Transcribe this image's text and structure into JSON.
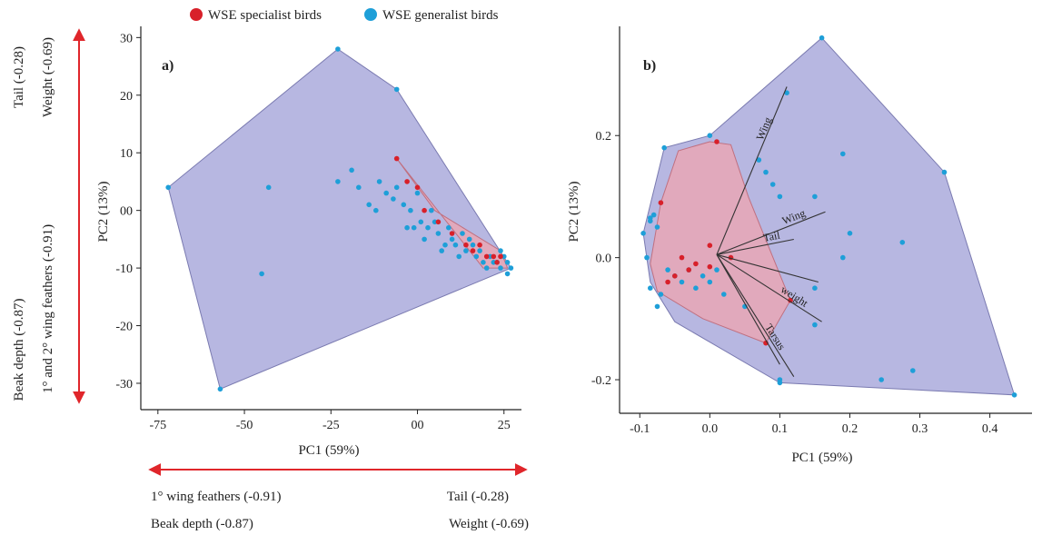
{
  "legend": {
    "specialist_label": "WSE specialist birds",
    "generalist_label": "WSE generalist birds"
  },
  "colors": {
    "specialist": "#d8202a",
    "generalist": "#1e9fd8",
    "hull_generalist": "#aaaadc",
    "hull_specialist": "#e6a7b8",
    "arrows": "#e0262b"
  },
  "annotations": {
    "y_top_a": "Tail (-0.28)",
    "y_top_b": "Weight (-0.69)",
    "y_bottom_a": "Beak depth (-0.87)",
    "y_bottom_b": "1° and 2° wing feathers (-0.91)",
    "x_left_a": "1° wing feathers (-0.91)",
    "x_left_b": "Beak depth (-0.87)",
    "x_right_a": "Tail (-0.28)",
    "x_right_b": "Weight (-0.69)"
  },
  "chart_data": [
    {
      "panel": "a)",
      "type": "scatter",
      "title": "",
      "xlabel": "PC1 (59%)",
      "ylabel": "PC2 (13%)",
      "xlim": [
        -76,
        29
      ],
      "ylim": [
        -33,
        31
      ],
      "xticks": [
        -75,
        -50,
        -25,
        0,
        25
      ],
      "xtick_labels": [
        "-75",
        "-50",
        "-25",
        "00",
        "25"
      ],
      "yticks": [
        30,
        20,
        10,
        0,
        -10,
        -20,
        -30
      ],
      "ytick_labels": [
        "30",
        "20",
        "10",
        "00",
        "-10",
        "-20",
        "-30"
      ],
      "hull_generalist": [
        [
          -23,
          28
        ],
        [
          -6,
          21
        ],
        [
          27,
          -10
        ],
        [
          -57,
          -31
        ],
        [
          -72,
          4
        ]
      ],
      "hull_specialist": [
        [
          -6,
          9
        ],
        [
          5,
          0
        ],
        [
          24,
          -7
        ],
        [
          26,
          -10
        ],
        [
          19,
          -10
        ]
      ],
      "series": [
        {
          "name": "WSE generalist birds",
          "points": [
            [
              -23,
              28
            ],
            [
              -6,
              21
            ],
            [
              -72,
              4
            ],
            [
              -57,
              -31
            ],
            [
              -45,
              -11
            ],
            [
              -43,
              4
            ],
            [
              -23,
              5
            ],
            [
              -19,
              7
            ],
            [
              -17,
              4
            ],
            [
              -14,
              1
            ],
            [
              -12,
              0
            ],
            [
              -11,
              5
            ],
            [
              -9,
              3
            ],
            [
              -7,
              2
            ],
            [
              -6,
              4
            ],
            [
              -4,
              1
            ],
            [
              -3,
              -3
            ],
            [
              -2,
              0
            ],
            [
              -1,
              -3
            ],
            [
              0,
              3
            ],
            [
              1,
              -2
            ],
            [
              2,
              -5
            ],
            [
              3,
              -3
            ],
            [
              4,
              0
            ],
            [
              5,
              -2
            ],
            [
              6,
              -4
            ],
            [
              7,
              -7
            ],
            [
              8,
              -6
            ],
            [
              9,
              -3
            ],
            [
              10,
              -5
            ],
            [
              11,
              -6
            ],
            [
              12,
              -8
            ],
            [
              13,
              -4
            ],
            [
              14,
              -7
            ],
            [
              15,
              -5
            ],
            [
              16,
              -6
            ],
            [
              17,
              -8
            ],
            [
              18,
              -7
            ],
            [
              19,
              -9
            ],
            [
              20,
              -10
            ],
            [
              21,
              -8
            ],
            [
              22,
              -9
            ],
            [
              23,
              -9
            ],
            [
              24,
              -7
            ],
            [
              25,
              -8
            ],
            [
              26,
              -9
            ],
            [
              27,
              -10
            ],
            [
              26,
              -11
            ],
            [
              24,
              -10
            ]
          ]
        },
        {
          "name": "WSE specialist birds",
          "points": [
            [
              -6,
              9
            ],
            [
              -3,
              5
            ],
            [
              0,
              4
            ],
            [
              2,
              0
            ],
            [
              6,
              -2
            ],
            [
              10,
              -4
            ],
            [
              14,
              -6
            ],
            [
              16,
              -7
            ],
            [
              18,
              -6
            ],
            [
              20,
              -8
            ],
            [
              22,
              -8
            ],
            [
              23,
              -9
            ],
            [
              24,
              -8
            ]
          ]
        }
      ]
    },
    {
      "panel": "b)",
      "type": "scatter",
      "title": "",
      "xlabel": "PC1 (59%)",
      "ylabel": "PC2 (13%)",
      "xlim": [
        -0.125,
        0.455
      ],
      "ylim": [
        -0.255,
        0.37
      ],
      "xticks": [
        -0.1,
        0.0,
        0.1,
        0.2,
        0.3,
        0.4
      ],
      "xtick_labels": [
        "-0.1",
        "0.0",
        "0.1",
        "0.2",
        "0.3",
        "0.4"
      ],
      "yticks": [
        0.2,
        0.0,
        -0.2
      ],
      "ytick_labels": [
        "0.2",
        "0.0",
        "-0.2"
      ],
      "hull_generalist": [
        [
          0.16,
          0.36
        ],
        [
          0.335,
          0.14
        ],
        [
          0.435,
          -0.225
        ],
        [
          0.1,
          -0.205
        ],
        [
          -0.05,
          -0.105
        ],
        [
          -0.085,
          -0.04
        ],
        [
          -0.095,
          0.04
        ],
        [
          -0.065,
          0.18
        ],
        [
          0.0,
          0.2
        ]
      ],
      "hull_specialist": [
        [
          -0.07,
          0.09
        ],
        [
          -0.045,
          0.175
        ],
        [
          0.0,
          0.19
        ],
        [
          0.03,
          0.185
        ],
        [
          0.055,
          0.1
        ],
        [
          0.115,
          -0.07
        ],
        [
          0.08,
          -0.14
        ],
        [
          -0.01,
          -0.1
        ],
        [
          -0.075,
          -0.055
        ],
        [
          -0.085,
          -0.01
        ]
      ],
      "vectors": [
        {
          "label": "Wing",
          "end": [
            0.11,
            0.28
          ]
        },
        {
          "label": "Wing",
          "end": [
            0.165,
            0.075
          ]
        },
        {
          "label": "Tail",
          "end": [
            0.12,
            0.03
          ]
        },
        {
          "label": "",
          "end": [
            0.155,
            -0.04
          ]
        },
        {
          "label": "weight",
          "end": [
            0.16,
            -0.105
          ]
        },
        {
          "label": "Tarsus",
          "end": [
            0.12,
            -0.195
          ]
        },
        {
          "label": "",
          "end": [
            0.1,
            -0.175
          ]
        }
      ],
      "series": [
        {
          "name": "WSE generalist birds",
          "points": [
            [
              0.16,
              0.36
            ],
            [
              0.335,
              0.14
            ],
            [
              0.435,
              -0.225
            ],
            [
              0.1,
              -0.205
            ],
            [
              -0.065,
              0.18
            ],
            [
              0.0,
              0.2
            ],
            [
              -0.095,
              0.04
            ],
            [
              -0.085,
              0.06
            ],
            [
              -0.08,
              0.07
            ],
            [
              -0.085,
              0.065
            ],
            [
              -0.075,
              0.05
            ],
            [
              -0.09,
              0.0
            ],
            [
              -0.085,
              -0.05
            ],
            [
              -0.075,
              -0.08
            ],
            [
              -0.07,
              -0.06
            ],
            [
              -0.06,
              -0.02
            ],
            [
              -0.05,
              -0.03
            ],
            [
              -0.04,
              -0.04
            ],
            [
              -0.03,
              -0.02
            ],
            [
              -0.02,
              -0.05
            ],
            [
              -0.01,
              -0.03
            ],
            [
              0.0,
              -0.04
            ],
            [
              0.01,
              -0.02
            ],
            [
              0.02,
              -0.06
            ],
            [
              0.05,
              -0.08
            ],
            [
              0.07,
              0.16
            ],
            [
              0.08,
              0.14
            ],
            [
              0.09,
              0.12
            ],
            [
              0.1,
              0.1
            ],
            [
              0.15,
              0.1
            ],
            [
              0.19,
              0.17
            ],
            [
              0.2,
              0.04
            ],
            [
              0.245,
              -0.2
            ],
            [
              0.275,
              0.025
            ],
            [
              0.29,
              -0.185
            ],
            [
              0.19,
              0.0
            ],
            [
              0.15,
              -0.05
            ],
            [
              0.15,
              -0.11
            ],
            [
              0.1,
              -0.2
            ],
            [
              0.11,
              0.27
            ]
          ]
        },
        {
          "name": "WSE specialist birds",
          "points": [
            [
              -0.07,
              0.09
            ],
            [
              -0.05,
              -0.03
            ],
            [
              -0.04,
              0.0
            ],
            [
              -0.03,
              -0.02
            ],
            [
              -0.02,
              -0.01
            ],
            [
              0.0,
              -0.015
            ],
            [
              0.01,
              0.19
            ],
            [
              0.03,
              0.0
            ],
            [
              0.115,
              -0.07
            ],
            [
              0.08,
              -0.14
            ],
            [
              -0.06,
              -0.04
            ],
            [
              0.0,
              0.02
            ]
          ]
        }
      ]
    }
  ]
}
